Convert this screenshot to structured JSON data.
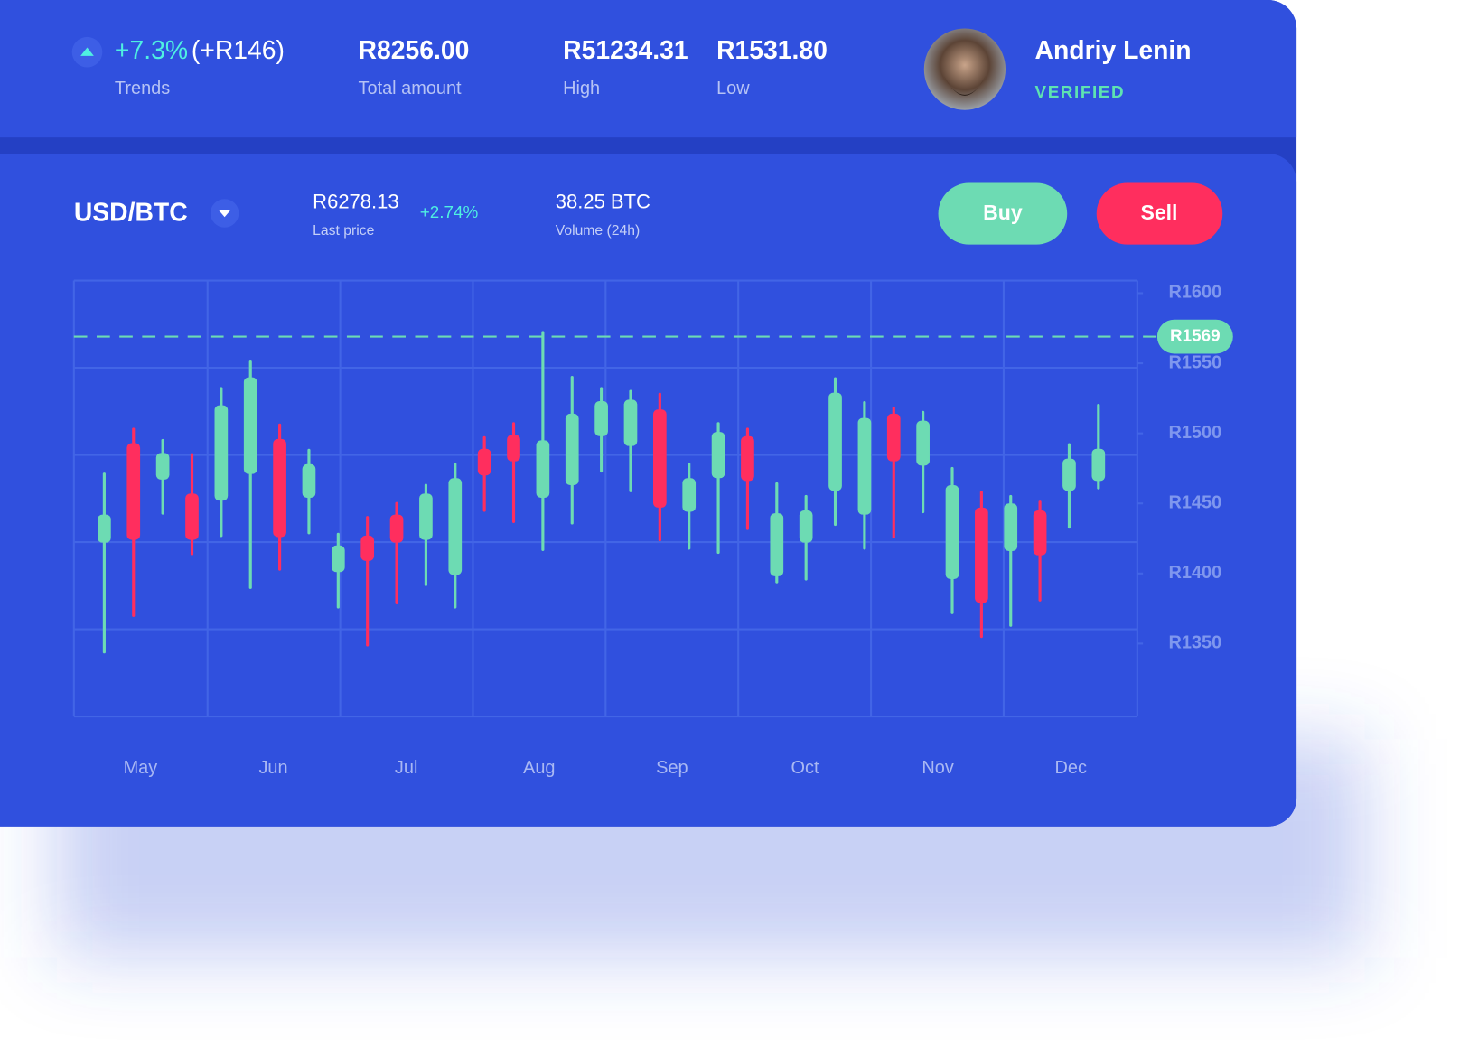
{
  "header": {
    "trend": {
      "value": "+7.3%",
      "delta": "(+R146)",
      "label": "Trends"
    },
    "stats": [
      {
        "value": "R8256.00",
        "label": "Total amount"
      },
      {
        "value": "R51234.31",
        "label": "High"
      },
      {
        "value": "R1531.80",
        "label": "Low"
      }
    ],
    "user": {
      "name": "Andriy Lenin",
      "status": "VERIFIED"
    }
  },
  "pair": {
    "name": "USD/BTC",
    "last_price": "R6278.13",
    "last_price_label": "Last price",
    "change": "+2.74%",
    "volume": "38.25 BTC",
    "volume_label": "Volume (24h)"
  },
  "buttons": {
    "buy": "Buy",
    "sell": "Sell"
  },
  "chart_data": {
    "type": "candlestick",
    "open": [
      1422,
      1493,
      1467,
      1457,
      1452,
      1471,
      1496,
      1454,
      1401,
      1427,
      1442,
      1424,
      1399,
      1489,
      1499,
      1454,
      1463,
      1498,
      1491,
      1517,
      1444,
      1468,
      1498,
      1398,
      1422,
      1459,
      1442,
      1514,
      1477,
      1396,
      1447,
      1416,
      1445,
      1459,
      1466
    ],
    "high": [
      1471,
      1503,
      1495,
      1485,
      1532,
      1551,
      1506,
      1488,
      1428,
      1440,
      1450,
      1463,
      1478,
      1497,
      1507,
      1572,
      1540,
      1532,
      1530,
      1528,
      1478,
      1507,
      1503,
      1464,
      1455,
      1539,
      1522,
      1518,
      1515,
      1475,
      1458,
      1455,
      1451,
      1492,
      1520
    ],
    "low": [
      1344,
      1370,
      1443,
      1414,
      1427,
      1390,
      1403,
      1429,
      1376,
      1349,
      1379,
      1392,
      1376,
      1445,
      1437,
      1417,
      1436,
      1473,
      1459,
      1424,
      1418,
      1415,
      1432,
      1394,
      1396,
      1435,
      1418,
      1426,
      1444,
      1372,
      1355,
      1363,
      1381,
      1433,
      1461
    ],
    "close": [
      1442,
      1424,
      1486,
      1424,
      1520,
      1540,
      1426,
      1478,
      1420,
      1409,
      1422,
      1457,
      1468,
      1470,
      1480,
      1495,
      1514,
      1523,
      1524,
      1447,
      1468,
      1501,
      1466,
      1443,
      1445,
      1529,
      1511,
      1480,
      1509,
      1463,
      1379,
      1450,
      1413,
      1482,
      1489
    ],
    "up_color": "#6ddbb3",
    "down_color": "#ff2e5e",
    "months": [
      "May",
      "Jun",
      "Jul",
      "Aug",
      "Sep",
      "Oct",
      "Nov",
      "Dec"
    ],
    "ylim": [
      1298,
      1609
    ],
    "yticks": [
      {
        "value": 1600,
        "label": "R1600"
      },
      {
        "value": 1550,
        "label": "R1550"
      },
      {
        "value": 1500,
        "label": "R1500"
      },
      {
        "value": 1450,
        "label": "R1450"
      },
      {
        "value": 1400,
        "label": "R1400"
      },
      {
        "value": 1350,
        "label": "R1350"
      }
    ],
    "current_price": {
      "value": 1569,
      "label": "R1569"
    }
  }
}
